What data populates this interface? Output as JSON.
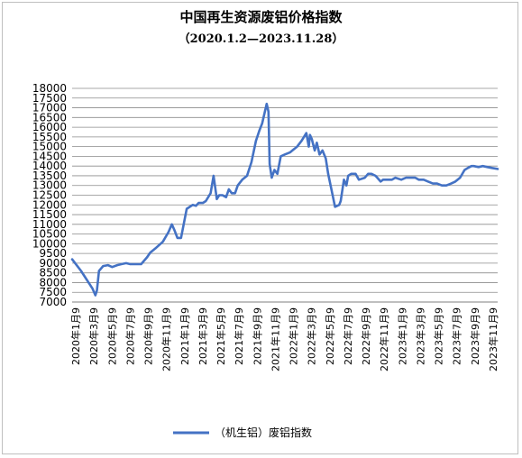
{
  "chart_data": {
    "type": "line",
    "title": "中国再生资源废铝价格指数",
    "subtitle": "（2020.1.2—2023.11.28）",
    "xlabel": "",
    "ylabel": "",
    "ylim": [
      7000,
      18000
    ],
    "ytick_step": 500,
    "grid": true,
    "legend_position": "bottom",
    "x_tick_labels": [
      "2020年1月9",
      "2020年3月9",
      "2020年5月9",
      "2020年7月9",
      "2020年9月9",
      "2020年11月9",
      "2021年1月9",
      "2021年3月9",
      "2021年5月9",
      "2021年7月9",
      "2021年9月9",
      "2021年11月9",
      "2022年1月9",
      "2022年3月9",
      "2022年5月9",
      "2022年7月9",
      "2022年9月9",
      "2022年11月9",
      "2023年1月9",
      "2023年3月9",
      "2023年5月9",
      "2023年7月9",
      "2023年9月9",
      "2023年11月9"
    ],
    "series": [
      {
        "name": "（机生铝）废铝指数",
        "color": "#4472c4",
        "x": [
          "2020-01-02",
          "2020-02-01",
          "2020-03-10",
          "2020-03-20",
          "2020-03-25",
          "2020-04-01",
          "2020-04-15",
          "2020-05-01",
          "2020-05-15",
          "2020-06-01",
          "2020-06-15",
          "2020-07-01",
          "2020-07-15",
          "2020-08-01",
          "2020-08-20",
          "2020-09-09",
          "2020-09-20",
          "2020-10-10",
          "2020-11-01",
          "2020-11-20",
          "2020-12-01",
          "2020-12-10",
          "2020-12-20",
          "2021-01-01",
          "2021-01-20",
          "2021-02-09",
          "2021-02-20",
          "2021-03-01",
          "2021-03-15",
          "2021-03-25",
          "2021-04-10",
          "2021-04-20",
          "2021-05-01",
          "2021-05-09",
          "2021-05-20",
          "2021-06-01",
          "2021-06-10",
          "2021-06-20",
          "2021-07-01",
          "2021-07-10",
          "2021-07-25",
          "2021-08-10",
          "2021-08-25",
          "2021-09-09",
          "2021-09-20",
          "2021-09-30",
          "2021-10-15",
          "2021-10-21",
          "2021-10-25",
          "2021-11-01",
          "2021-11-10",
          "2021-11-20",
          "2021-12-01",
          "2021-12-15",
          "2022-01-01",
          "2022-01-09",
          "2022-01-25",
          "2022-02-09",
          "2022-02-25",
          "2022-03-05",
          "2022-03-09",
          "2022-03-15",
          "2022-03-25",
          "2022-04-01",
          "2022-04-10",
          "2022-04-20",
          "2022-05-01",
          "2022-05-09",
          "2022-05-20",
          "2022-06-01",
          "2022-06-15",
          "2022-06-20",
          "2022-07-01",
          "2022-07-09",
          "2022-07-15",
          "2022-07-25",
          "2022-08-09",
          "2022-08-20",
          "2022-09-09",
          "2022-09-20",
          "2022-10-01",
          "2022-10-15",
          "2022-11-01",
          "2022-11-09",
          "2022-11-20",
          "2022-12-09",
          "2022-12-20",
          "2023-01-09",
          "2023-01-25",
          "2023-02-09",
          "2023-02-25",
          "2023-03-09",
          "2023-03-25",
          "2023-04-09",
          "2023-04-25",
          "2023-05-09",
          "2023-05-25",
          "2023-06-09",
          "2023-06-25",
          "2023-07-09",
          "2023-07-25",
          "2023-08-09",
          "2023-08-20",
          "2023-09-01",
          "2023-09-09",
          "2023-09-25",
          "2023-10-09",
          "2023-10-25",
          "2023-11-09",
          "2023-11-28"
        ],
        "y": [
          9200,
          8600,
          7700,
          7350,
          7600,
          8600,
          8850,
          8900,
          8800,
          8900,
          8950,
          9000,
          8950,
          8950,
          8950,
          9300,
          9550,
          9800,
          10100,
          10600,
          11000,
          10700,
          10300,
          10300,
          11800,
          12000,
          11950,
          12100,
          12100,
          12200,
          12600,
          13500,
          12300,
          12500,
          12500,
          12400,
          12800,
          12600,
          12600,
          13000,
          13300,
          13500,
          14200,
          15300,
          15800,
          16200,
          17200,
          16800,
          14100,
          13400,
          13800,
          13600,
          14500,
          14600,
          14700,
          14800,
          15000,
          15300,
          15700,
          15000,
          15600,
          15400,
          14800,
          15200,
          14600,
          14800,
          14400,
          13600,
          12800,
          11900,
          12000,
          12200,
          13300,
          13000,
          13500,
          13600,
          13600,
          13300,
          13400,
          13600,
          13600,
          13500,
          13200,
          13300,
          13300,
          13300,
          13400,
          13300,
          13400,
          13400,
          13400,
          13300,
          13300,
          13200,
          13100,
          13100,
          13000,
          13000,
          13100,
          13200,
          13400,
          13800,
          13900,
          14000,
          14000,
          13950,
          14000,
          13950,
          13900,
          13850
        ]
      }
    ]
  }
}
